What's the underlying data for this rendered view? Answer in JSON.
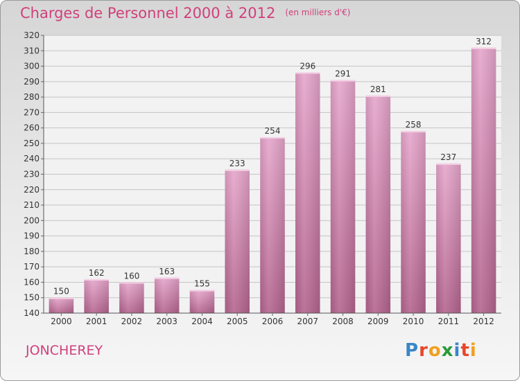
{
  "header": {
    "title": "Charges de Personnel 2000 à 2012",
    "subtitle": "(en milliers d'€)"
  },
  "footer": {
    "place": "JONCHEREY"
  },
  "logo": {
    "letters": [
      "P",
      "r",
      "o",
      "x",
      "i",
      "t",
      "i"
    ],
    "colors": [
      "#3a86c8",
      "#e8462a",
      "#f0a020",
      "#2a9a3a",
      "#3a86c8",
      "#e8462a",
      "#f0a020"
    ]
  },
  "chart_data": {
    "type": "bar",
    "categories": [
      "2000",
      "2001",
      "2002",
      "2003",
      "2004",
      "2005",
      "2006",
      "2007",
      "2008",
      "2009",
      "2010",
      "2011",
      "2012"
    ],
    "values": [
      150,
      162,
      160,
      163,
      155,
      233,
      254,
      296,
      291,
      281,
      258,
      237,
      312
    ],
    "title": "Charges de Personnel 2000 à 2012",
    "subtitle": "(en milliers d'€)",
    "ylim": [
      140,
      320
    ],
    "yticks": [
      140,
      150,
      160,
      170,
      180,
      190,
      200,
      210,
      220,
      230,
      240,
      250,
      260,
      270,
      280,
      290,
      300,
      310,
      320
    ],
    "grid": true,
    "bar_color": "#cc78a4"
  }
}
